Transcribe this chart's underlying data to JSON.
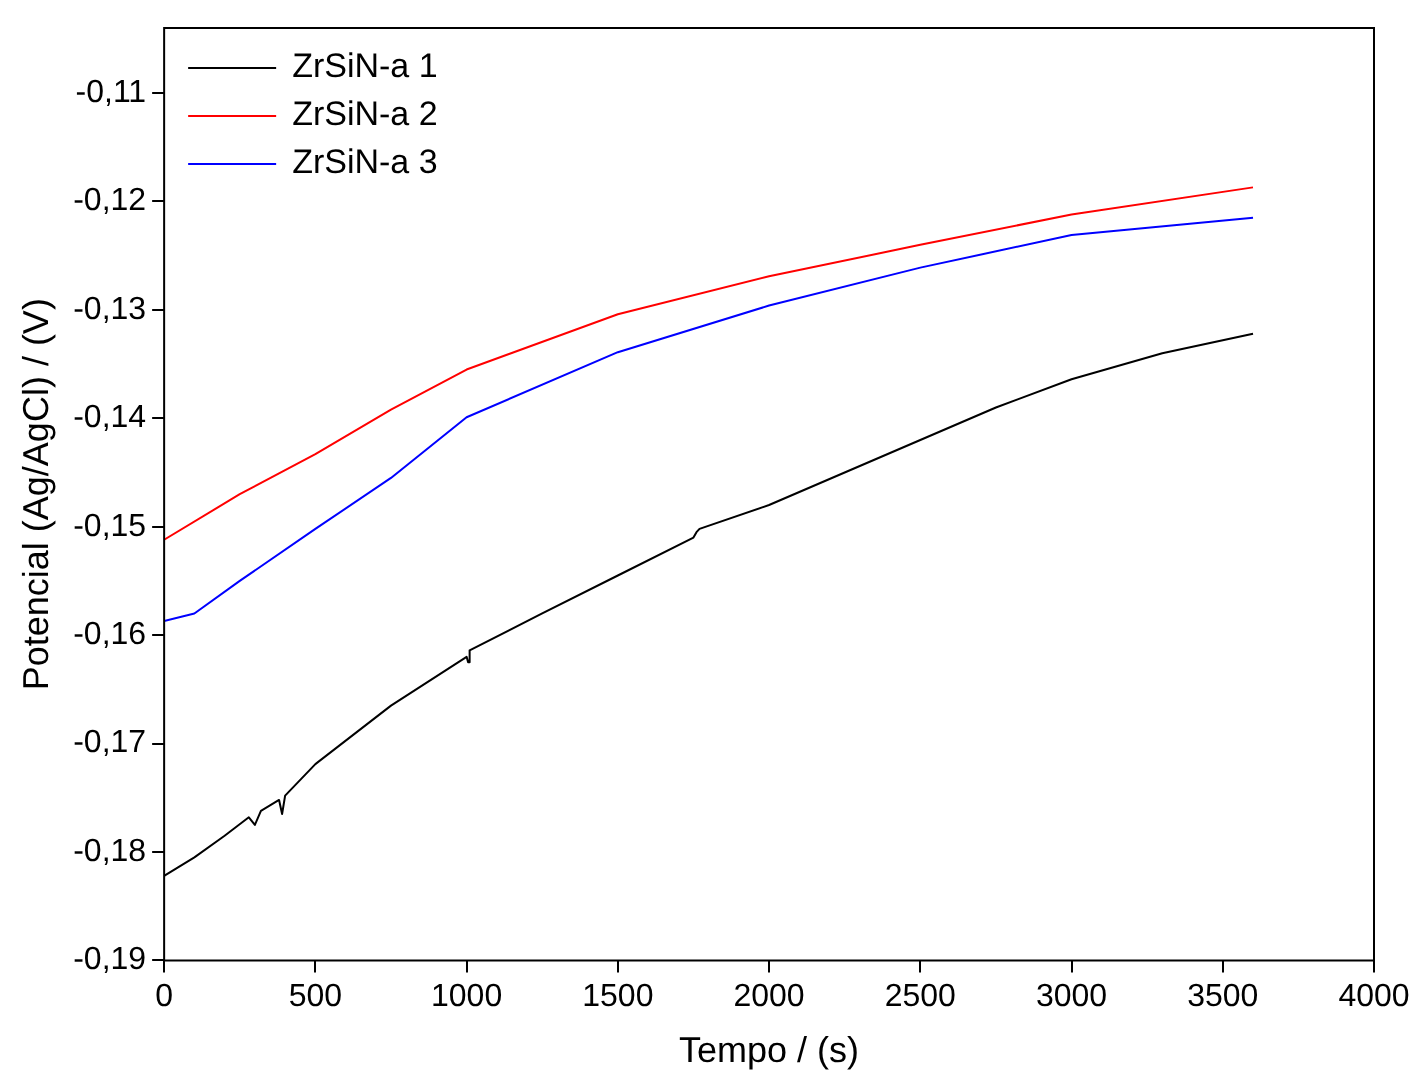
{
  "chart_data": {
    "type": "line",
    "xlabel": "Tempo / (s)",
    "ylabel": "Potencial (Ag/AgCl) / (V)",
    "xlim": [
      0,
      4000
    ],
    "xticks": [
      0,
      500,
      1000,
      1500,
      2000,
      2500,
      3000,
      3500,
      4000
    ],
    "ylim": [
      -0.19,
      -0.104
    ],
    "yticks": [
      {
        "value": -0.19,
        "label": "-0,19"
      },
      {
        "value": -0.18,
        "label": "-0,18"
      },
      {
        "value": -0.17,
        "label": "-0,17"
      },
      {
        "value": -0.16,
        "label": "-0,16"
      },
      {
        "value": -0.15,
        "label": "-0,15"
      },
      {
        "value": -0.14,
        "label": "-0,14"
      },
      {
        "value": -0.13,
        "label": "-0,13"
      },
      {
        "value": -0.12,
        "label": "-0,12"
      },
      {
        "value": -0.11,
        "label": "-0,11"
      }
    ],
    "grid": false,
    "legend": "top left",
    "marker": "none",
    "line_style": "solid",
    "series": [
      {
        "name": "ZrSiN-a 1",
        "color": "#000000",
        "x": [
          0,
          100,
          200,
          280,
          300,
          320,
          380,
          390,
          400,
          500,
          750,
          1000,
          1005,
          1010,
          1250,
          1500,
          1750,
          1760,
          1770,
          2000,
          2200,
          2500,
          2750,
          3000,
          3300,
          3600
        ],
        "values": [
          -0.1822,
          -0.1805,
          -0.1785,
          -0.1768,
          -0.1775,
          -0.1762,
          -0.1752,
          -0.1765,
          -0.1748,
          -0.1719,
          -0.1665,
          -0.162,
          -0.1625,
          -0.1614,
          -0.158,
          -0.1545,
          -0.151,
          -0.1505,
          -0.1502,
          -0.148,
          -0.1456,
          -0.142,
          -0.139,
          -0.1364,
          -0.134,
          -0.1322
        ]
      },
      {
        "name": "ZrSiN-a 2",
        "color": "#ff0000",
        "x": [
          0,
          250,
          500,
          750,
          1000,
          1500,
          2000,
          2500,
          3000,
          3600
        ],
        "values": [
          -0.1512,
          -0.147,
          -0.1433,
          -0.1392,
          -0.1355,
          -0.1304,
          -0.1269,
          -0.124,
          -0.1212,
          -0.1187
        ]
      },
      {
        "name": "ZrSiN-a 3",
        "color": "#0000ff",
        "x": [
          0,
          100,
          250,
          500,
          750,
          1000,
          1500,
          2000,
          2500,
          3000,
          3600
        ],
        "values": [
          -0.1587,
          -0.158,
          -0.155,
          -0.1502,
          -0.1455,
          -0.1399,
          -0.1339,
          -0.1296,
          -0.1261,
          -0.1231,
          -0.1215
        ]
      }
    ]
  }
}
